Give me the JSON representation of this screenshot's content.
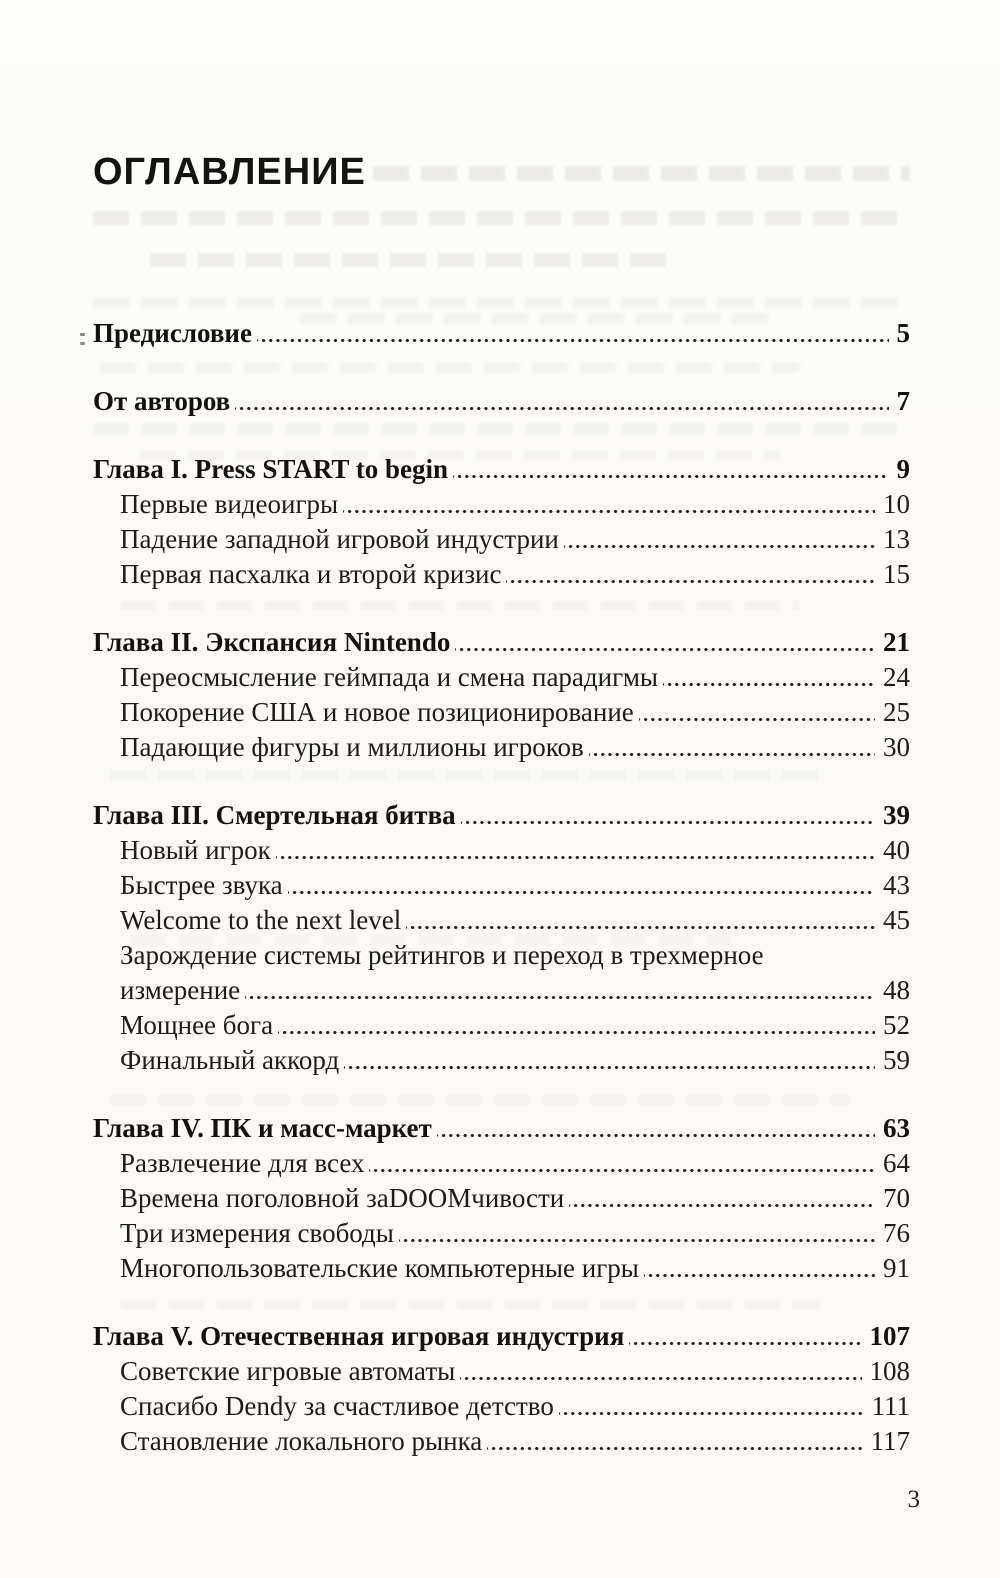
{
  "page": {
    "title": "ОГЛАВЛЕНИЕ",
    "folio": "3"
  },
  "toc": {
    "entries": [
      {
        "label": "Предисловие",
        "page": "5",
        "level": "chapter",
        "gap_before": true
      },
      {
        "label": "От авторов",
        "page": "7",
        "level": "chapter",
        "gap_before": true
      },
      {
        "label": "Глава I. Press START to begin",
        "page": "9",
        "level": "chapter",
        "gap_before": true
      },
      {
        "label": "Первые видеоигры",
        "page": "10",
        "level": "section"
      },
      {
        "label": "Падение западной игровой индустрии",
        "page": "13",
        "level": "section"
      },
      {
        "label": "Первая пасхалка и второй кризис",
        "page": "15",
        "level": "section"
      },
      {
        "label": "Глава II. Экспансия Nintendo",
        "page": "21",
        "level": "chapter",
        "gap_before": true
      },
      {
        "label": "Переосмысление геймпада и смена парадигмы",
        "page": "24",
        "level": "section"
      },
      {
        "label": "Покорение США и новое позиционирование",
        "page": "25",
        "level": "section"
      },
      {
        "label": "Падающие фигуры и миллионы игроков",
        "page": "30",
        "level": "section"
      },
      {
        "label": "Глава III. Смертельная битва",
        "page": "39",
        "level": "chapter",
        "gap_before": true
      },
      {
        "label": "Новый игрок",
        "page": "40",
        "level": "section"
      },
      {
        "label": "Быстрее звука",
        "page": "43",
        "level": "section"
      },
      {
        "label": "Welcome to the next level",
        "page": "45",
        "level": "section"
      },
      {
        "label": "Зарождение системы рейтингов и переход в трехмерное измерение",
        "page": "48",
        "level": "section",
        "wrap_before": "измерение"
      },
      {
        "label": "Мощнее бога",
        "page": "52",
        "level": "section"
      },
      {
        "label": "Финальный аккорд",
        "page": "59",
        "level": "section"
      },
      {
        "label": "Глава IV. ПК и масс-маркет",
        "page": "63",
        "level": "chapter",
        "gap_before": true
      },
      {
        "label": "Развлечение для всех",
        "page": "64",
        "level": "section"
      },
      {
        "label": "Времена поголовной заDOOMчивости",
        "page": "70",
        "level": "section"
      },
      {
        "label": "Три измерения свободы",
        "page": "76",
        "level": "section"
      },
      {
        "label": "Многопользовательские компьютерные игры",
        "page": "91",
        "level": "section"
      },
      {
        "label": "Глава V. Отечественная игровая индустрия",
        "page": "107",
        "level": "chapter",
        "gap_before": true
      },
      {
        "label": "Советские игровые автоматы",
        "page": "108",
        "level": "section"
      },
      {
        "label": "Спасибо Dendy за счастливое детство",
        "page": "111",
        "level": "section"
      },
      {
        "label": "Становление локального рынка",
        "page": "117",
        "level": "section"
      }
    ]
  }
}
